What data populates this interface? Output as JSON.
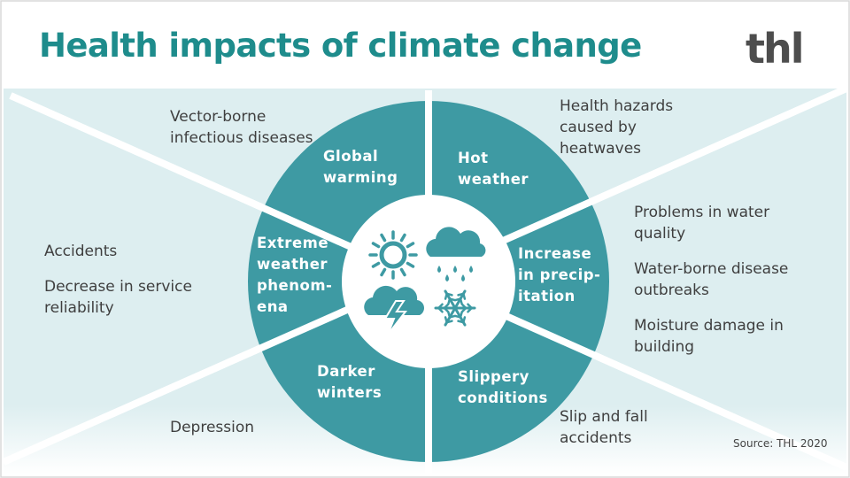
{
  "title": "Health impacts of climate change",
  "logo": "thl",
  "source": "Source: THL 2020",
  "colors": {
    "teal": "#3e9aa3",
    "title": "#1e8c8c",
    "background": "#ddeef0",
    "white": "#ffffff"
  },
  "segments": [
    {
      "name": "hot-weather",
      "lines": [
        "Hot",
        "weather"
      ]
    },
    {
      "name": "increase-in-precipitation",
      "lines": [
        "Increase",
        "in precip-",
        "itation"
      ]
    },
    {
      "name": "slippery-conditions",
      "lines": [
        "Slippery",
        "conditions"
      ]
    },
    {
      "name": "darker-winters",
      "lines": [
        "Darker",
        "winters"
      ]
    },
    {
      "name": "extreme-weather-phenomena",
      "lines": [
        "Extreme",
        "weather",
        "phenom-",
        "ena"
      ]
    },
    {
      "name": "global-warming",
      "lines": [
        "Global",
        "warming"
      ]
    }
  ],
  "center_icons": [
    "sun-icon",
    "rain-cloud-icon",
    "thunderstorm-cloud-icon",
    "snowflake-icon"
  ],
  "impacts": {
    "vector_borne": "Vector-borne\ninfectious diseases",
    "heatwaves": "Health hazards\ncaused by\nheatwaves",
    "water_quality": "Problems in water\nquality",
    "waterborne": "Water-borne disease\noutbreaks",
    "moisture": "Moisture damage in\nbuilding",
    "slip_fall": "Slip and fall\naccidents",
    "depression": "Depression",
    "accidents": "Accidents",
    "service": "Decrease in service\nreliability"
  }
}
